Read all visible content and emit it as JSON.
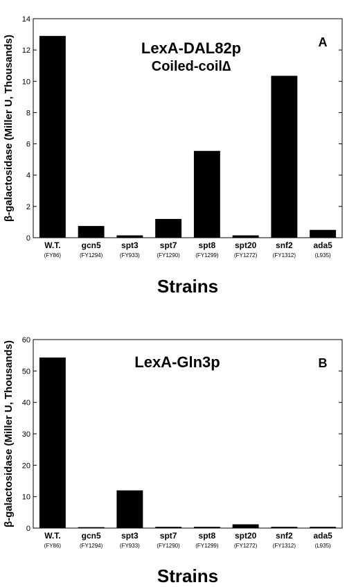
{
  "chart_data": [
    {
      "type": "bar",
      "panel": "A",
      "title": "LexA-DAL82p",
      "subtitle": "Coiled-coil∆",
      "ylabel": "β-galactosidase (Miller U, Thousands)",
      "xlabel": "Strains",
      "categories": [
        "W.T.",
        "gcn5",
        "spt3",
        "spt7",
        "spt8",
        "spt20",
        "snf2",
        "ada5"
      ],
      "subcategories": [
        "(FY86)",
        "(FY1294)",
        "(FY933)",
        "(FY1290)",
        "(FY1299)",
        "(FY1272)",
        "(FY1312)",
        "(L935)"
      ],
      "values": [
        12.9,
        0.75,
        0.15,
        1.2,
        5.55,
        0.15,
        10.35,
        0.5
      ],
      "ylim": [
        0,
        14
      ],
      "yticks": [
        0,
        2,
        4,
        6,
        8,
        10,
        12,
        14
      ],
      "bar_color": "#000000"
    },
    {
      "type": "bar",
      "panel": "B",
      "title": "LexA-Gln3p",
      "subtitle": "",
      "ylabel": "β-galactosidase (Miller U, Thousands)",
      "xlabel": "Strains",
      "categories": [
        "W.T.",
        "gcn5",
        "spt3",
        "spt7",
        "spt8",
        "spt20",
        "snf2",
        "ada5"
      ],
      "subcategories": [
        "(FY86)",
        "(FY1294)",
        "(FY933)",
        "(FY1290)",
        "(FY1299)",
        "(FY1272)",
        "(FY1312)",
        "(L935)"
      ],
      "values": [
        54.3,
        0.3,
        12.0,
        0.4,
        0.4,
        1.2,
        0.4,
        0.4
      ],
      "ylim": [
        0,
        60
      ],
      "yticks": [
        0,
        10,
        20,
        30,
        40,
        50,
        60
      ],
      "bar_color": "#000000"
    }
  ]
}
